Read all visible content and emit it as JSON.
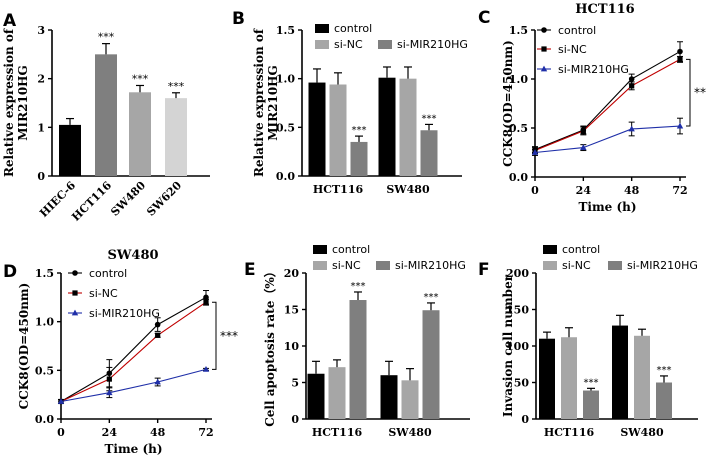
{
  "colors": {
    "black": "#000000",
    "dark_gray": "#7f7f7f",
    "gray": "#a6a6a6",
    "light_gray": "#d4d4d4",
    "red_line": "#c00000",
    "blue_marker": "#1f2fa8"
  },
  "chart_data": [
    {
      "panel": "A",
      "type": "bar",
      "categories": [
        "HIEC-6",
        "HCT116",
        "SW480",
        "SW620"
      ],
      "values": [
        1.05,
        2.5,
        1.72,
        1.6
      ],
      "errors": [
        0.13,
        0.22,
        0.14,
        0.11
      ],
      "annotations": [
        "",
        "***",
        "***",
        "***"
      ],
      "ylabel": "Relative expression of MIR210HG",
      "ylim": [
        0,
        3
      ],
      "yticks": [
        "0",
        "1",
        "2",
        "3"
      ],
      "grid": false
    },
    {
      "panel": "B",
      "type": "bar",
      "categories": [
        "HCT116",
        "SW480"
      ],
      "series": [
        {
          "name": "control",
          "values": [
            0.96,
            1.01
          ],
          "errors": [
            0.14,
            0.11
          ],
          "annotations": [
            "",
            ""
          ]
        },
        {
          "name": "si-NC",
          "values": [
            0.94,
            1.0
          ],
          "errors": [
            0.12,
            0.12
          ],
          "annotations": [
            "",
            ""
          ]
        },
        {
          "name": "si-MIR210HG",
          "values": [
            0.35,
            0.47
          ],
          "errors": [
            0.06,
            0.06
          ],
          "annotations": [
            "***",
            "***"
          ]
        }
      ],
      "ylabel": "Relative expression of MIR210HG",
      "ylim": [
        0,
        1.5
      ],
      "yticks": [
        "0.0",
        "0.5",
        "1.0",
        "1.5"
      ],
      "legend": "top",
      "grid": false
    },
    {
      "panel": "C",
      "type": "line",
      "title": "HCT116",
      "x": [
        0,
        24,
        48,
        72
      ],
      "series": [
        {
          "name": "control",
          "values": [
            0.28,
            0.48,
            1.0,
            1.28
          ],
          "errors": [
            0.03,
            0.04,
            0.05,
            0.1
          ]
        },
        {
          "name": "si-NC",
          "values": [
            0.27,
            0.47,
            0.93,
            1.2
          ],
          "errors": [
            0.03,
            0.04,
            0.04,
            0.03
          ]
        },
        {
          "name": "si-MIR210HG",
          "values": [
            0.25,
            0.3,
            0.49,
            0.52
          ],
          "errors": [
            0.03,
            0.03,
            0.07,
            0.08
          ]
        }
      ],
      "xlabel": "Time (h)",
      "ylabel": "CCK8(OD=450nm)",
      "xticks": [
        "0",
        "24",
        "48",
        "72"
      ],
      "yticks": [
        "0.0",
        "0.5",
        "1.0",
        "1.5"
      ],
      "xlim": [
        0,
        72
      ],
      "ylim": [
        0,
        1.5
      ],
      "significance": "**",
      "legend": "top-left",
      "grid": false
    },
    {
      "panel": "D",
      "type": "line",
      "title": "SW480",
      "x": [
        0,
        24,
        48,
        72
      ],
      "series": [
        {
          "name": "control",
          "values": [
            0.18,
            0.47,
            0.97,
            1.25
          ],
          "errors": [
            0.02,
            0.14,
            0.07,
            0.07
          ]
        },
        {
          "name": "si-NC",
          "values": [
            0.18,
            0.41,
            0.86,
            1.2
          ],
          "errors": [
            0.02,
            0.12,
            0.02,
            0.03
          ]
        },
        {
          "name": "si-MIR210HG",
          "values": [
            0.18,
            0.27,
            0.38,
            0.51
          ],
          "errors": [
            0.02,
            0.05,
            0.04,
            0.01
          ]
        }
      ],
      "xlabel": "Time (h)",
      "ylabel": "CCK8(OD=450nm)",
      "xticks": [
        "0",
        "24",
        "48",
        "72"
      ],
      "yticks": [
        "0.0",
        "0.5",
        "1.0",
        "1.5"
      ],
      "xlim": [
        0,
        72
      ],
      "ylim": [
        0,
        1.5
      ],
      "significance": "***",
      "legend": "top-left",
      "grid": false
    },
    {
      "panel": "E",
      "type": "bar",
      "categories": [
        "HCT116",
        "SW480"
      ],
      "series": [
        {
          "name": "control",
          "values": [
            6.2,
            6.0
          ],
          "errors": [
            1.7,
            1.9
          ],
          "annotations": [
            "",
            ""
          ]
        },
        {
          "name": "si-NC",
          "values": [
            7.1,
            5.3
          ],
          "errors": [
            1.0,
            1.6
          ],
          "annotations": [
            "",
            ""
          ]
        },
        {
          "name": "si-MIR210HG",
          "values": [
            16.3,
            14.9
          ],
          "errors": [
            1.1,
            1.0
          ],
          "annotations": [
            "***",
            "***"
          ]
        }
      ],
      "ylabel": "Cell apoptosis rate（%）",
      "ylim": [
        0,
        20
      ],
      "yticks": [
        "0",
        "5",
        "10",
        "15",
        "20"
      ],
      "legend": "top",
      "grid": false
    },
    {
      "panel": "F",
      "type": "bar",
      "categories": [
        "HCT116",
        "SW480"
      ],
      "series": [
        {
          "name": "control",
          "values": [
            110,
            128
          ],
          "errors": [
            9,
            14
          ],
          "annotations": [
            "",
            ""
          ]
        },
        {
          "name": "si-NC",
          "values": [
            112,
            114
          ],
          "errors": [
            13,
            9
          ],
          "annotations": [
            "",
            ""
          ]
        },
        {
          "name": "si-MIR210HG",
          "values": [
            39,
            50
          ],
          "errors": [
            3,
            9
          ],
          "annotations": [
            "***",
            "***"
          ]
        }
      ],
      "ylabel": "Invasion cell number",
      "ylim": [
        0,
        200
      ],
      "yticks": [
        "0",
        "50",
        "100",
        "150",
        "200"
      ],
      "legend": "top",
      "grid": false
    }
  ]
}
